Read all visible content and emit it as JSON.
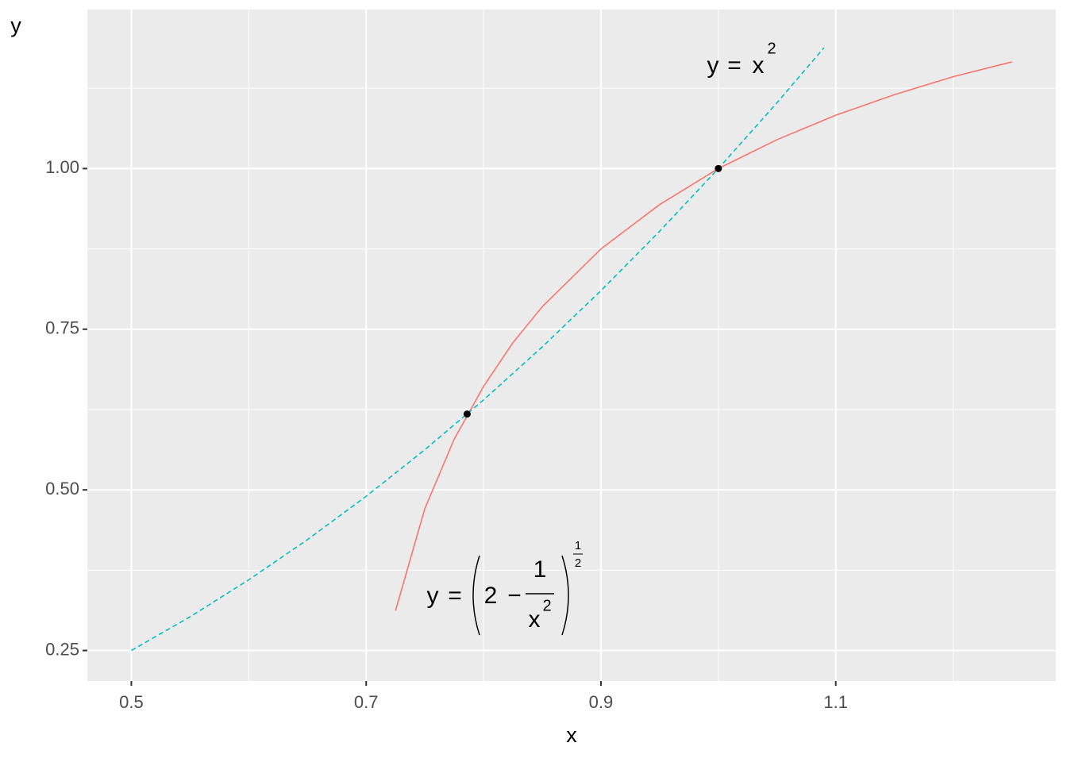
{
  "chart_data": {
    "type": "line",
    "xlabel": "x",
    "ylabel": "y",
    "xlim": [
      0.4625,
      1.2875
    ],
    "ylim": [
      0.2025,
      1.2475
    ],
    "xticks": [
      0.5,
      0.7,
      0.9,
      1.1
    ],
    "yticks": [
      0.25,
      {
        "value": 0.5,
        "label": "0.50"
      },
      0.75,
      {
        "value": 1,
        "label": "1.00"
      }
    ],
    "xminor": [
      0.6,
      0.8,
      1.0,
      1.2
    ],
    "yminor": [
      0.375,
      0.625,
      0.875,
      1.125
    ],
    "grid": true,
    "series": [
      {
        "color": "#F8766D",
        "dash": "solid",
        "x": [
          0.725,
          0.75,
          0.775,
          0.8,
          0.825,
          0.85,
          0.9,
          0.95,
          1.0,
          1.05,
          1.1,
          1.15,
          1.2,
          1.25
        ],
        "values": [
          0.312,
          0.471,
          0.579,
          0.661,
          0.729,
          0.785,
          0.875,
          0.944,
          1.0,
          1.045,
          1.083,
          1.115,
          1.143,
          1.166
        ]
      },
      {
        "color": "#00BFC4",
        "dash": "dashed",
        "x": [
          0.5,
          0.55,
          0.6,
          0.65,
          0.7,
          0.75,
          0.8,
          0.85,
          0.9,
          0.95,
          1.0,
          1.05,
          1.09
        ],
        "values": [
          0.25,
          0.3025,
          0.36,
          0.4225,
          0.49,
          0.5625,
          0.64,
          0.7225,
          0.81,
          0.9025,
          1.0,
          1.1025,
          1.1881
        ]
      }
    ],
    "points": {
      "color": "#000000",
      "x": [
        0.786,
        1.0
      ],
      "values": [
        0.618,
        1.0
      ]
    },
    "annotations": [
      {
        "parts": [
          "y",
          "=",
          "x",
          "2"
        ]
      },
      {
        "parts": [
          "y",
          "=",
          "2",
          "−",
          "1",
          "x",
          "2",
          "1",
          "2"
        ]
      }
    ]
  }
}
